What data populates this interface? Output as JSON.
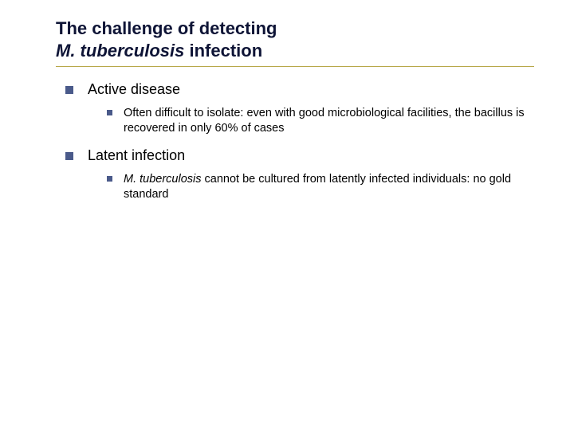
{
  "colors": {
    "title_text": "#0e1436",
    "underline": "#b8a84a",
    "bullet_square": "#4a5a8a",
    "body_text": "#000000"
  },
  "title": {
    "line1": "The challenge of detecting",
    "line2_italic": "M. tuberculosis",
    "line2_rest": " infection"
  },
  "content": {
    "items": [
      {
        "label": "Active disease",
        "sub": {
          "prefix": "",
          "italic": "",
          "rest": "Often difficult to isolate: even with good microbiological facilities, the bacillus is recovered in only 60% of cases"
        }
      },
      {
        "label": "Latent infection",
        "sub": {
          "prefix": "",
          "italic": "M. tuberculosis ",
          "rest": " cannot be cultured from latently infected individuals: no gold standard"
        }
      }
    ]
  }
}
